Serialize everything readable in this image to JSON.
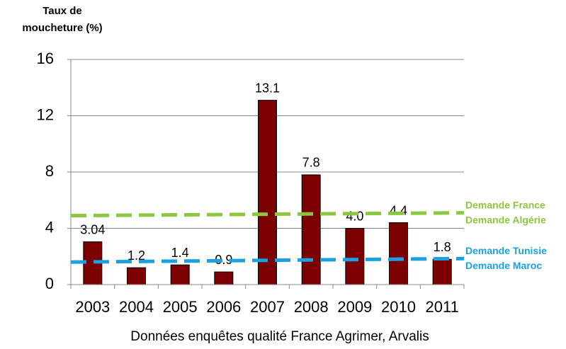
{
  "chart_data": {
    "type": "bar",
    "ylabel": [
      "Taux  de",
      "moucheture (%)"
    ],
    "caption": "Données enquêtes qualité France Agrimer, Arvalis",
    "categories": [
      "2003",
      "2004",
      "2005",
      "2006",
      "2007",
      "2008",
      "2009",
      "2010",
      "2011"
    ],
    "values": [
      3.04,
      1.2,
      1.4,
      0.9,
      13.1,
      7.8,
      4.0,
      4.4,
      1.8
    ],
    "value_labels": [
      "3.04",
      "1.2",
      "1.4",
      "0.9",
      "13.1",
      "7.8",
      "4.0",
      "4.4",
      "1.8"
    ],
    "color": "#7b0000",
    "ylim": [
      0,
      16
    ],
    "yticks": [
      0,
      4,
      8,
      12,
      16
    ],
    "grid": true,
    "reference_lines": [
      {
        "labels": [
          "Demande France",
          "Demande Algérie"
        ],
        "values": [
          4.9,
          5.1
        ],
        "color": "#8dc63f"
      },
      {
        "labels": [
          "Demande Tunisie",
          "Demande Maroc"
        ],
        "values": [
          1.6,
          1.85
        ],
        "color": "#1ba1e2"
      }
    ]
  }
}
